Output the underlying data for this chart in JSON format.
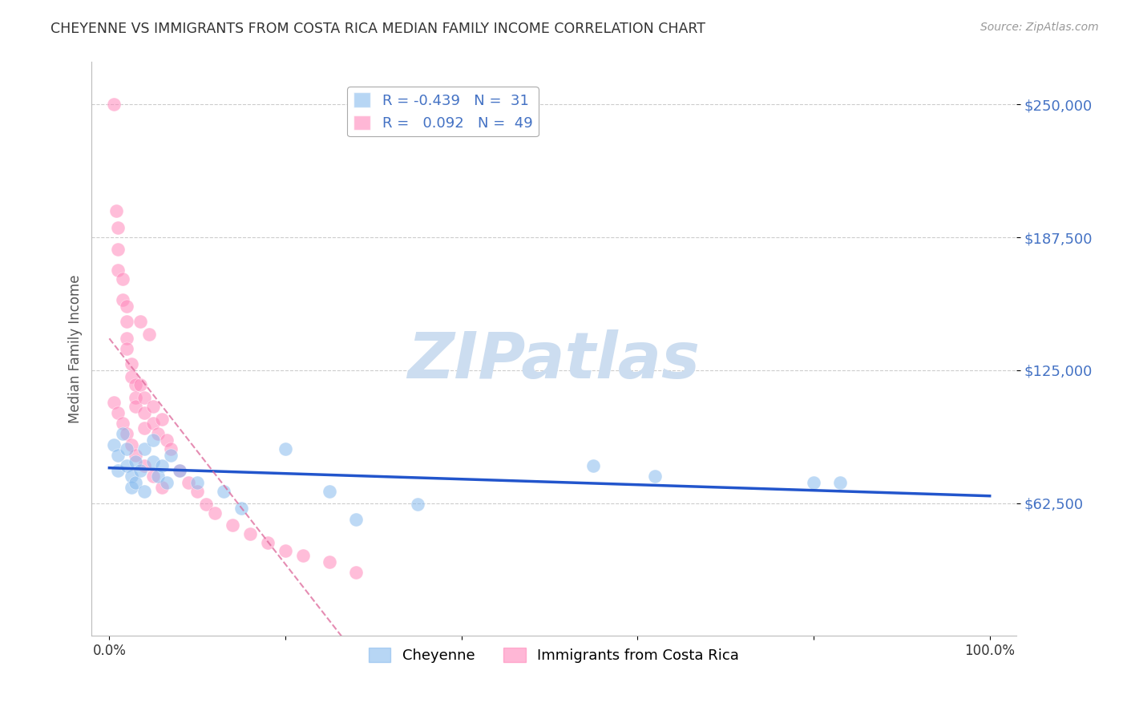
{
  "title": "CHEYENNE VS IMMIGRANTS FROM COSTA RICA MEDIAN FAMILY INCOME CORRELATION CHART",
  "source": "Source: ZipAtlas.com",
  "ylabel": "Median Family Income",
  "color_blue": "#88bbee",
  "color_pink": "#ff88bb",
  "color_blue_line": "#2255cc",
  "color_pink_dashed": "#dd6699",
  "background_color": "#ffffff",
  "title_color": "#333333",
  "ytick_color": "#4472c4",
  "watermark_color": "#ccddf0",
  "ylim": [
    0,
    270000
  ],
  "xlim": [
    -0.02,
    1.03
  ],
  "cheyenne_x": [
    0.005,
    0.01,
    0.01,
    0.015,
    0.02,
    0.02,
    0.025,
    0.025,
    0.03,
    0.03,
    0.035,
    0.04,
    0.04,
    0.05,
    0.05,
    0.055,
    0.06,
    0.065,
    0.07,
    0.08,
    0.1,
    0.13,
    0.15,
    0.2,
    0.25,
    0.28,
    0.35,
    0.55,
    0.62,
    0.8,
    0.83
  ],
  "cheyenne_y": [
    90000,
    85000,
    78000,
    95000,
    88000,
    80000,
    75000,
    70000,
    82000,
    72000,
    78000,
    68000,
    88000,
    82000,
    92000,
    75000,
    80000,
    72000,
    85000,
    78000,
    72000,
    68000,
    60000,
    88000,
    68000,
    55000,
    62000,
    80000,
    75000,
    72000,
    72000
  ],
  "cr_x": [
    0.005,
    0.008,
    0.01,
    0.01,
    0.01,
    0.015,
    0.015,
    0.02,
    0.02,
    0.02,
    0.02,
    0.025,
    0.025,
    0.03,
    0.03,
    0.03,
    0.035,
    0.035,
    0.04,
    0.04,
    0.04,
    0.045,
    0.05,
    0.05,
    0.055,
    0.06,
    0.065,
    0.07,
    0.08,
    0.09,
    0.1,
    0.11,
    0.12,
    0.14,
    0.16,
    0.18,
    0.2,
    0.22,
    0.25,
    0.28,
    0.005,
    0.01,
    0.015,
    0.02,
    0.025,
    0.03,
    0.04,
    0.05,
    0.06
  ],
  "cr_y": [
    250000,
    200000,
    192000,
    182000,
    172000,
    168000,
    158000,
    155000,
    148000,
    140000,
    135000,
    128000,
    122000,
    118000,
    112000,
    108000,
    148000,
    118000,
    112000,
    105000,
    98000,
    142000,
    108000,
    100000,
    95000,
    102000,
    92000,
    88000,
    78000,
    72000,
    68000,
    62000,
    58000,
    52000,
    48000,
    44000,
    40000,
    38000,
    35000,
    30000,
    110000,
    105000,
    100000,
    95000,
    90000,
    85000,
    80000,
    75000,
    70000
  ]
}
